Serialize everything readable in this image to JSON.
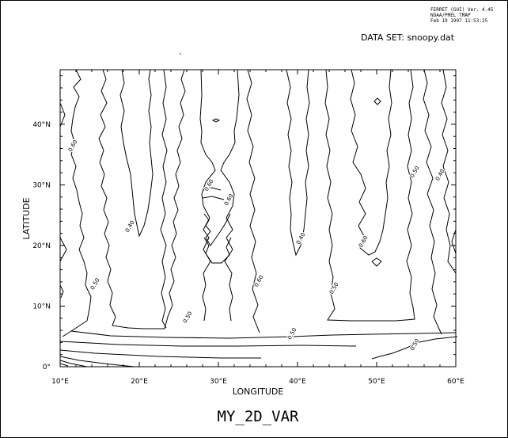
{
  "header": {
    "version_line_1": "FERRET (GUI) Ver. 4.45",
    "version_line_2": "NOAA/PMEL TMAP",
    "version_line_3": "Feb 19 1997 11:53:25",
    "dataset": "DATA SET: snoopy.dat"
  },
  "chart_data": {
    "type": "contour",
    "title": "MY_2D_VAR",
    "xlabel": "LONGITUDE",
    "ylabel": "LATITUDE",
    "xlim": [
      10,
      60
    ],
    "ylim": [
      0,
      49
    ],
    "x_ticks": [
      10,
      20,
      30,
      40,
      50,
      60
    ],
    "x_tick_labels": [
      "10°E",
      "20°E",
      "30°E",
      "40°E",
      "50°E",
      "60°E"
    ],
    "y_ticks": [
      0,
      10,
      20,
      30,
      40
    ],
    "y_tick_labels": [
      "0°",
      "10°N",
      "20°N",
      "30°N",
      "40°N"
    ],
    "grid": false,
    "contour_levels": [
      0.4,
      0.5,
      0.6
    ],
    "contour_labels": [
      {
        "text": "0.60",
        "x": 11.8,
        "y": 36.3
      },
      {
        "text": "0.50",
        "x": 14.6,
        "y": 13.5
      },
      {
        "text": "0.40",
        "x": 19.0,
        "y": 23.0
      },
      {
        "text": "0.60",
        "x": 29.0,
        "y": 29.8
      },
      {
        "text": "0.60",
        "x": 31.5,
        "y": 27.4
      },
      {
        "text": "0.50",
        "x": 26.3,
        "y": 8.0
      },
      {
        "text": "0.60",
        "x": 35.3,
        "y": 14.0
      },
      {
        "text": "0.40",
        "x": 40.6,
        "y": 21.0
      },
      {
        "text": "0.50",
        "x": 44.8,
        "y": 12.8
      },
      {
        "text": "0.60",
        "x": 48.5,
        "y": 20.5
      },
      {
        "text": "0.50",
        "x": 39.5,
        "y": 5.3
      },
      {
        "text": "0.50",
        "x": 55.0,
        "y": 3.5
      },
      {
        "text": "0.50",
        "x": 55.0,
        "y": 32.0
      },
      {
        "text": "0.40",
        "x": 58.2,
        "y": 31.5
      }
    ]
  }
}
